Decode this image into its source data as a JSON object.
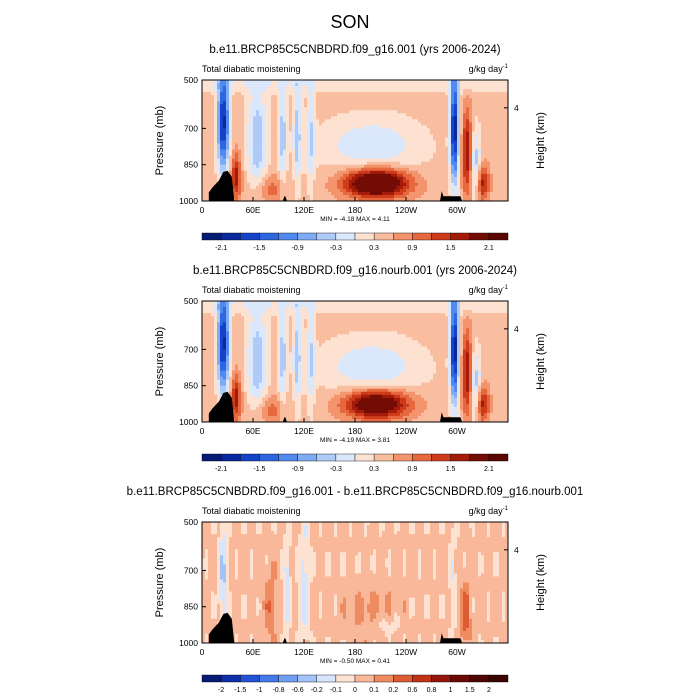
{
  "figure": {
    "title": "SON"
  },
  "colors": {
    "land": "#000000",
    "zero": "#ffffff"
  },
  "chart_data": [
    {
      "type": "heatmap",
      "title": "b.e11.BRCP85C5CNBDRD.f09_g16.001 (yrs 2006-2024)",
      "left_label": "Total diabatic moistening",
      "units_base": "g/kg day",
      "units_exp": "-1",
      "ylabel": "Pressure (mb)",
      "ylabel_right": "Height (km)",
      "y_ticks": [
        "500",
        "700",
        "850",
        "1000"
      ],
      "y_tick_values": [
        500,
        700,
        850,
        1000
      ],
      "ylim": [
        500,
        1000
      ],
      "right_ticks": [
        "4"
      ],
      "right_tick_pressures": [
        615
      ],
      "x_ticks": [
        "0",
        "60E",
        "120E",
        "180",
        "120W",
        "60W"
      ],
      "x_tick_values": [
        0,
        60,
        120,
        180,
        240,
        300
      ],
      "xlim": [
        0,
        360
      ],
      "min_max": "MIN = -4.18  MAX =  4.11",
      "colorbar": {
        "tick_labels": [
          "-2.1",
          "-1.5",
          "-0.9",
          "-0.3",
          "0.3",
          "0.9",
          "1.5",
          "2.1"
        ],
        "tick_values": [
          -2.1,
          -1.5,
          -0.9,
          -0.3,
          0.3,
          0.9,
          1.5,
          2.1
        ],
        "levels": [
          -2.1,
          -1.8,
          -1.5,
          -1.2,
          -0.9,
          -0.6,
          -0.3,
          0,
          0.3,
          0.6,
          0.9,
          1.2,
          1.5,
          1.8,
          2.1
        ]
      }
    },
    {
      "type": "heatmap",
      "title": "b.e11.BRCP85C5CNBDRD.f09_g16.nourb.001 (yrs 2006-2024)",
      "left_label": "Total diabatic moistening",
      "units_base": "g/kg day",
      "units_exp": "-1",
      "ylabel": "Pressure (mb)",
      "ylabel_right": "Height (km)",
      "y_ticks": [
        "500",
        "700",
        "850",
        "1000"
      ],
      "y_tick_values": [
        500,
        700,
        850,
        1000
      ],
      "ylim": [
        500,
        1000
      ],
      "right_ticks": [
        "4"
      ],
      "right_tick_pressures": [
        615
      ],
      "x_ticks": [
        "0",
        "60E",
        "120E",
        "180",
        "120W",
        "60W"
      ],
      "x_tick_values": [
        0,
        60,
        120,
        180,
        240,
        300
      ],
      "xlim": [
        0,
        360
      ],
      "min_max": "MIN = -4.19  MAX =  3.81",
      "colorbar": {
        "tick_labels": [
          "-2.1",
          "-1.5",
          "-0.9",
          "-0.3",
          "0.3",
          "0.9",
          "1.5",
          "2.1"
        ],
        "tick_values": [
          -2.1,
          -1.5,
          -0.9,
          -0.3,
          0.3,
          0.9,
          1.5,
          2.1
        ],
        "levels": [
          -2.1,
          -1.8,
          -1.5,
          -1.2,
          -0.9,
          -0.6,
          -0.3,
          0,
          0.3,
          0.6,
          0.9,
          1.2,
          1.5,
          1.8,
          2.1
        ]
      }
    },
    {
      "type": "heatmap",
      "title": "b.e11.BRCP85C5CNBDRD.f09_g16.001 - b.e11.BRCP85C5CNBDRD.f09_g16.nourb.001",
      "left_label": "Total diabatic moistening",
      "units_base": "g/kg day",
      "units_exp": "-1",
      "ylabel": "Pressure (mb)",
      "ylabel_right": "Height (km)",
      "y_ticks": [
        "500",
        "700",
        "850",
        "1000"
      ],
      "y_tick_values": [
        500,
        700,
        850,
        1000
      ],
      "ylim": [
        500,
        1000
      ],
      "right_ticks": [
        "4"
      ],
      "right_tick_pressures": [
        615
      ],
      "x_ticks": [
        "0",
        "60E",
        "120E",
        "180",
        "120W",
        "60W"
      ],
      "x_tick_values": [
        0,
        60,
        120,
        180,
        240,
        300
      ],
      "xlim": [
        0,
        360
      ],
      "min_max": "MIN = -0.50  MAX =  0.41",
      "colorbar": {
        "tick_labels": [
          "-2",
          "-1.5",
          "-1",
          "-0.8",
          "-0.6",
          "-0.2",
          "-0.1",
          "0",
          "0.1",
          "0.2",
          "0.6",
          "0.8",
          "1",
          "1.5",
          "2"
        ],
        "tick_values": [
          -2,
          -1.5,
          -1,
          -0.8,
          -0.6,
          -0.2,
          -0.1,
          0,
          0.1,
          0.2,
          0.6,
          0.8,
          1,
          1.5,
          2
        ],
        "levels": [
          -2,
          -1.5,
          -1,
          -0.8,
          -0.6,
          -0.2,
          -0.1,
          0,
          0.1,
          0.2,
          0.6,
          0.8,
          1,
          1.5,
          2
        ]
      }
    }
  ]
}
